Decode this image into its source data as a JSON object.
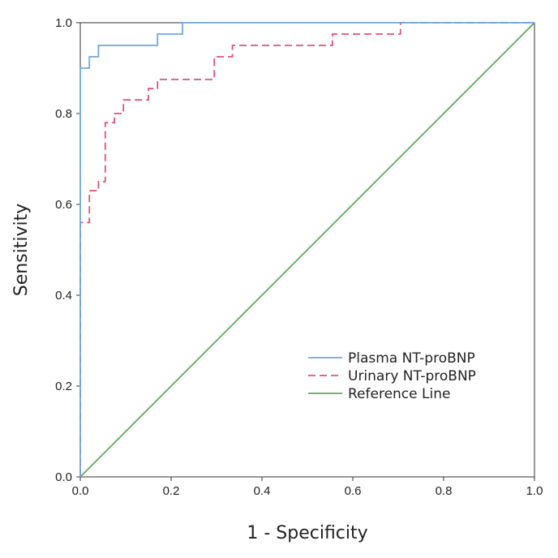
{
  "chart_data": {
    "type": "line",
    "title": "",
    "xlabel": "1 - Specificity",
    "ylabel": "Sensitivity",
    "xlim": [
      0,
      1
    ],
    "ylim": [
      0,
      1
    ],
    "x_ticks": [
      "0.0",
      "0.2",
      "0.4",
      "0.6",
      "0.8",
      "1.0"
    ],
    "y_ticks": [
      "0.0",
      "0.2",
      "0.4",
      "0.6",
      "0.8",
      "1.0"
    ],
    "grid": false,
    "legend_position": "bottom-right",
    "series": [
      {
        "name": "Plasma NT-proBNP",
        "color": "#6fa8e0",
        "dash": "solid",
        "points": [
          [
            0,
            0
          ],
          [
            0,
            0.9
          ],
          [
            0.02,
            0.9
          ],
          [
            0.02,
            0.925
          ],
          [
            0.04,
            0.925
          ],
          [
            0.04,
            0.95
          ],
          [
            0.17,
            0.95
          ],
          [
            0.17,
            0.975
          ],
          [
            0.225,
            0.975
          ],
          [
            0.225,
            1
          ],
          [
            1,
            1
          ]
        ]
      },
      {
        "name": "Urinary NT-proBNP",
        "color": "#e0507a",
        "dash": "dashed",
        "points": [
          [
            0,
            0
          ],
          [
            0,
            0.56
          ],
          [
            0.02,
            0.56
          ],
          [
            0.02,
            0.63
          ],
          [
            0.04,
            0.63
          ],
          [
            0.04,
            0.65
          ],
          [
            0.055,
            0.65
          ],
          [
            0.055,
            0.78
          ],
          [
            0.075,
            0.78
          ],
          [
            0.075,
            0.8
          ],
          [
            0.095,
            0.8
          ],
          [
            0.095,
            0.83
          ],
          [
            0.15,
            0.83
          ],
          [
            0.15,
            0.855
          ],
          [
            0.17,
            0.855
          ],
          [
            0.17,
            0.875
          ],
          [
            0.295,
            0.875
          ],
          [
            0.295,
            0.925
          ],
          [
            0.335,
            0.925
          ],
          [
            0.335,
            0.95
          ],
          [
            0.555,
            0.95
          ],
          [
            0.555,
            0.975
          ],
          [
            0.705,
            0.975
          ],
          [
            0.705,
            1
          ],
          [
            1,
            1
          ]
        ]
      },
      {
        "name": "Reference Line",
        "color": "#5aab55",
        "dash": "solid",
        "points": [
          [
            0,
            0
          ],
          [
            1,
            1
          ]
        ]
      }
    ]
  }
}
